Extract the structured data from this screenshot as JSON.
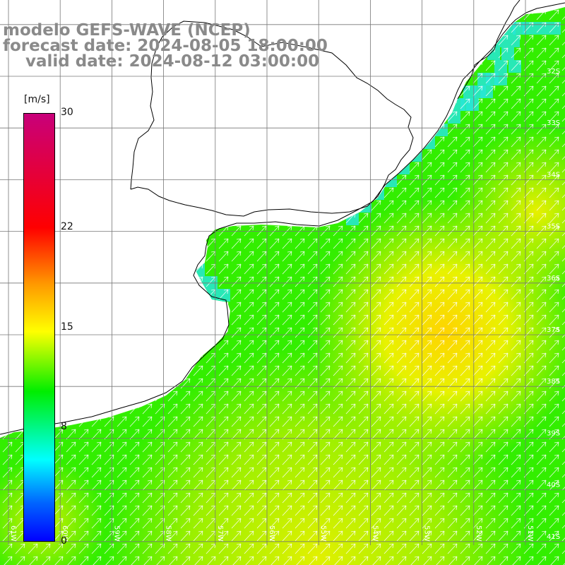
{
  "title": {
    "line1": "modelo GEFS-WAVE (NCEP)",
    "line2": "forecast date: 2024-08-05 18:00:00",
    "line3": "    valid date: 2024-08-12 03:00:00"
  },
  "colorbar": {
    "units": "[m/s]",
    "ticks": [
      "30",
      "22",
      "15",
      "8",
      "0"
    ],
    "tick_values": [
      30,
      22,
      15,
      8,
      0
    ],
    "range": [
      0,
      30
    ]
  },
  "axes": {
    "lon_labels": [
      "61W",
      "60W",
      "59W",
      "58W",
      "57W",
      "56W",
      "55W",
      "54W",
      "53W",
      "52W",
      "51W"
    ],
    "lat_labels": [
      "32S",
      "33S",
      "34S",
      "35S",
      "36S",
      "37S",
      "38S",
      "39S",
      "40S",
      "41S"
    ]
  },
  "colors": {
    "land": "#ffffff",
    "grid": "#777777",
    "coast": "#000000",
    "arrows": "#ffffff",
    "title": "#8a8a8a",
    "field_low": "#00ffff",
    "field_mid": "#33ee00",
    "field_high": "#ffee00"
  }
}
